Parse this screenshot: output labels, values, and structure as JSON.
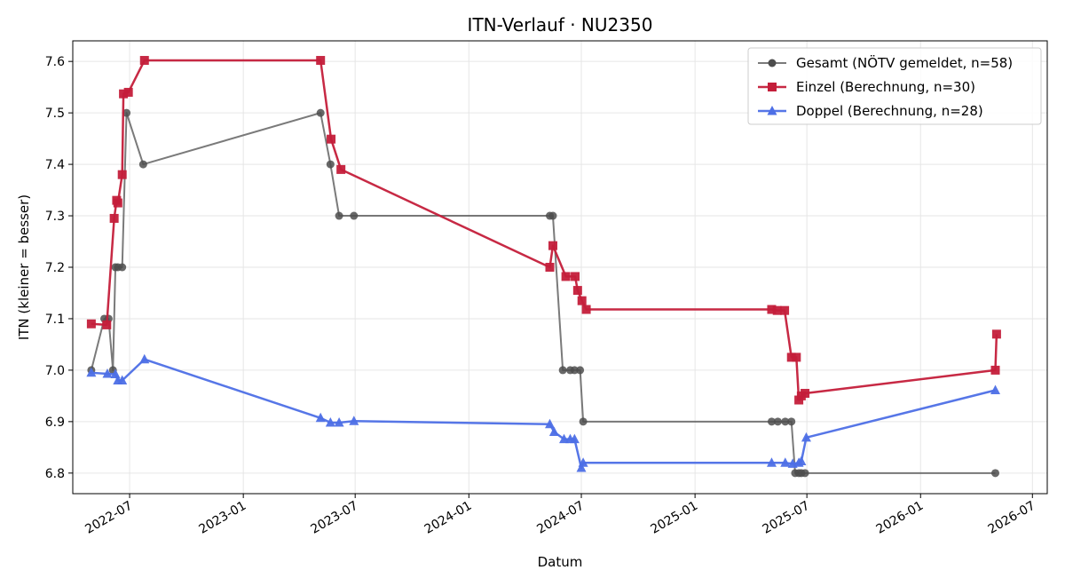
{
  "chart_data": {
    "type": "line",
    "title": "ITN-Verlauf · NU2350",
    "xlabel": "Datum",
    "ylabel": "ITN  (kleiner = besser)",
    "xlim": [
      "2022-03-31",
      "2026-07-25"
    ],
    "ylim": [
      6.76,
      7.64
    ],
    "x_ticks": [
      "2022-07",
      "2023-01",
      "2023-07",
      "2024-01",
      "2024-07",
      "2025-01",
      "2025-07",
      "2026-01",
      "2026-07"
    ],
    "y_ticks": [
      6.8,
      6.9,
      7.0,
      7.1,
      7.2,
      7.3,
      7.4,
      7.5,
      7.6
    ],
    "grid": true,
    "legend_position": "top-right",
    "series": [
      {
        "name": "Gesamt (NÖTV gemeldet, n=58)",
        "color": "#4d4d4d",
        "marker": "circle",
        "points": [
          [
            "2022-04-30",
            7.0
          ],
          [
            "2022-05-21",
            7.1
          ],
          [
            "2022-05-28",
            7.1
          ],
          [
            "2022-06-04",
            7.0
          ],
          [
            "2022-06-08",
            7.2
          ],
          [
            "2022-06-12",
            7.2
          ],
          [
            "2022-06-19",
            7.2
          ],
          [
            "2022-06-26",
            7.5
          ],
          [
            "2022-07-23",
            7.4
          ],
          [
            "2023-05-06",
            7.5
          ],
          [
            "2023-05-22",
            7.4
          ],
          [
            "2023-06-05",
            7.3
          ],
          [
            "2023-06-29",
            7.3
          ],
          [
            "2024-05-11",
            7.3
          ],
          [
            "2024-05-16",
            7.3
          ],
          [
            "2024-06-01",
            7.0
          ],
          [
            "2024-06-13",
            7.0
          ],
          [
            "2024-06-20",
            7.0
          ],
          [
            "2024-06-29",
            7.0
          ],
          [
            "2024-07-04",
            6.9
          ],
          [
            "2025-05-05",
            6.9
          ],
          [
            "2025-05-15",
            6.9
          ],
          [
            "2025-05-27",
            6.9
          ],
          [
            "2025-06-06",
            6.9
          ],
          [
            "2025-06-12",
            6.8
          ],
          [
            "2025-06-18",
            6.8
          ],
          [
            "2025-06-22",
            6.8
          ],
          [
            "2025-06-28",
            6.8
          ],
          [
            "2026-05-02",
            6.8
          ]
        ]
      },
      {
        "name": "Einzel (Berechnung, n=30)",
        "color": "#c41e3a",
        "marker": "square",
        "points": [
          [
            "2022-04-30",
            7.09
          ],
          [
            "2022-05-25",
            7.088
          ],
          [
            "2022-06-06",
            7.295
          ],
          [
            "2022-06-10",
            7.33
          ],
          [
            "2022-06-12",
            7.325
          ],
          [
            "2022-06-19",
            7.38
          ],
          [
            "2022-06-21",
            7.537
          ],
          [
            "2022-06-29",
            7.54
          ],
          [
            "2022-07-25",
            7.602
          ],
          [
            "2023-05-06",
            7.602
          ],
          [
            "2023-05-23",
            7.449
          ],
          [
            "2023-06-08",
            7.39
          ],
          [
            "2024-05-11",
            7.2
          ],
          [
            "2024-05-16",
            7.242
          ],
          [
            "2024-06-06",
            7.182
          ],
          [
            "2024-06-21",
            7.182
          ],
          [
            "2024-06-25",
            7.155
          ],
          [
            "2024-07-02",
            7.135
          ],
          [
            "2024-07-09",
            7.118
          ],
          [
            "2025-05-05",
            7.118
          ],
          [
            "2025-05-14",
            7.116
          ],
          [
            "2025-05-26",
            7.116
          ],
          [
            "2025-06-06",
            7.025
          ],
          [
            "2025-06-14",
            7.025
          ],
          [
            "2025-06-18",
            6.942
          ],
          [
            "2025-06-22",
            6.95
          ],
          [
            "2025-06-28",
            6.955
          ],
          [
            "2026-05-02",
            7.0
          ],
          [
            "2026-05-04",
            7.07
          ]
        ]
      },
      {
        "name": "Doppel (Berechnung, n=28)",
        "color": "#4d6fe6",
        "marker": "triangle",
        "points": [
          [
            "2022-04-30",
            6.995
          ],
          [
            "2022-05-26",
            6.993
          ],
          [
            "2022-06-08",
            6.992
          ],
          [
            "2022-06-12",
            6.98
          ],
          [
            "2022-06-19",
            6.98
          ],
          [
            "2022-07-25",
            7.021
          ],
          [
            "2023-05-06",
            6.907
          ],
          [
            "2023-05-22",
            6.898
          ],
          [
            "2023-06-05",
            6.898
          ],
          [
            "2023-06-29",
            6.901
          ],
          [
            "2024-05-11",
            6.895
          ],
          [
            "2024-05-18",
            6.88
          ],
          [
            "2024-06-03",
            6.866
          ],
          [
            "2024-06-13",
            6.866
          ],
          [
            "2024-06-20",
            6.866
          ],
          [
            "2024-07-01",
            6.81
          ],
          [
            "2024-07-04",
            6.82
          ],
          [
            "2025-05-05",
            6.82
          ],
          [
            "2025-05-27",
            6.82
          ],
          [
            "2025-06-08",
            6.818
          ],
          [
            "2025-06-18",
            6.82
          ],
          [
            "2025-06-22",
            6.823
          ],
          [
            "2025-06-30",
            6.869
          ],
          [
            "2026-05-02",
            6.961
          ]
        ]
      }
    ]
  }
}
